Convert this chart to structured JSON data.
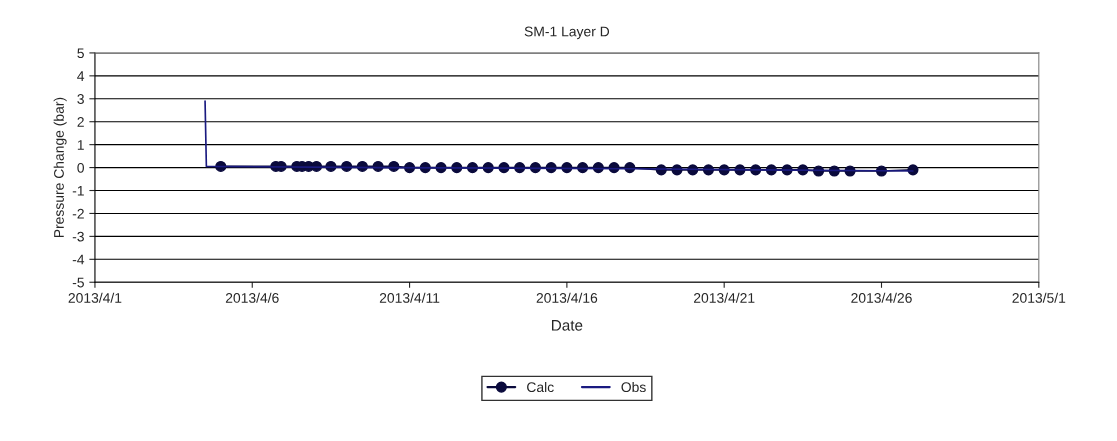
{
  "chart_data": {
    "type": "line",
    "title": "SM-1 Layer D",
    "xlabel": "Date",
    "ylabel": "Pressure Change (bar)",
    "xlim": [
      "2013-04-01",
      "2013-05-01"
    ],
    "xticks": [
      {
        "value": "2013-04-01",
        "label": "2013/4/1"
      },
      {
        "value": "2013-04-06",
        "label": "2013/4/6"
      },
      {
        "value": "2013-04-11",
        "label": "2013/4/11"
      },
      {
        "value": "2013-04-16",
        "label": "2013/4/16"
      },
      {
        "value": "2013-04-21",
        "label": "2013/4/21"
      },
      {
        "value": "2013-04-26",
        "label": "2013/4/26"
      },
      {
        "value": "2013-05-01",
        "label": "2013/5/1"
      }
    ],
    "ylim": [
      -5,
      5
    ],
    "yticks": [
      -5,
      -4,
      -3,
      -2,
      -1,
      0,
      1,
      2,
      3,
      4,
      5
    ],
    "grid": "y",
    "legend": "bottom",
    "series": [
      {
        "name": "Calc",
        "color": "#0a0a3c",
        "marker": "circle",
        "line_style": "solid",
        "x": [
          "2013-04-05T00:00",
          "2013-04-06T18:00",
          "2013-04-06T22:00",
          "2013-04-07T10:00",
          "2013-04-07T14:00",
          "2013-04-07T19:00",
          "2013-04-08T01:00",
          "2013-04-08T12:00",
          "2013-04-09T00:00",
          "2013-04-09T12:00",
          "2013-04-10T00:00",
          "2013-04-10T12:00",
          "2013-04-11T00:00",
          "2013-04-11T12:00",
          "2013-04-12T00:00",
          "2013-04-12T12:00",
          "2013-04-13T00:00",
          "2013-04-13T12:00",
          "2013-04-14T00:00",
          "2013-04-14T12:00",
          "2013-04-15T00:00",
          "2013-04-15T12:00",
          "2013-04-16T00:00",
          "2013-04-16T12:00",
          "2013-04-17T00:00",
          "2013-04-17T12:00",
          "2013-04-18T00:00",
          "2013-04-19T00:00",
          "2013-04-19T12:00",
          "2013-04-20T00:00",
          "2013-04-20T12:00",
          "2013-04-21T00:00",
          "2013-04-21T12:00",
          "2013-04-22T00:00",
          "2013-04-22T12:00",
          "2013-04-23T00:00",
          "2013-04-23T12:00",
          "2013-04-24T00:00",
          "2013-04-24T12:00",
          "2013-04-25T00:00",
          "2013-04-26T00:00",
          "2013-04-27T00:00"
        ],
        "values": [
          0.05,
          0.05,
          0.05,
          0.05,
          0.05,
          0.05,
          0.05,
          0.05,
          0.05,
          0.05,
          0.05,
          0.05,
          0.0,
          0.0,
          0.0,
          0.0,
          0.0,
          0.0,
          0.0,
          0.0,
          0.0,
          0.0,
          0.0,
          0.0,
          0.0,
          0.0,
          0.0,
          -0.1,
          -0.1,
          -0.1,
          -0.1,
          -0.1,
          -0.1,
          -0.1,
          -0.1,
          -0.1,
          -0.1,
          -0.15,
          -0.15,
          -0.15,
          -0.15,
          -0.1
        ]
      },
      {
        "name": "Obs",
        "color": "#1a1a80",
        "marker": "none",
        "line_style": "solid",
        "x": [
          "2013-04-04T12:00",
          "2013-04-04T13:00",
          "2013-04-10T00:00",
          "2013-04-18T00:00",
          "2013-04-27T00:00"
        ],
        "values": [
          2.9,
          0.05,
          0.0,
          -0.05,
          -0.15
        ]
      }
    ]
  }
}
